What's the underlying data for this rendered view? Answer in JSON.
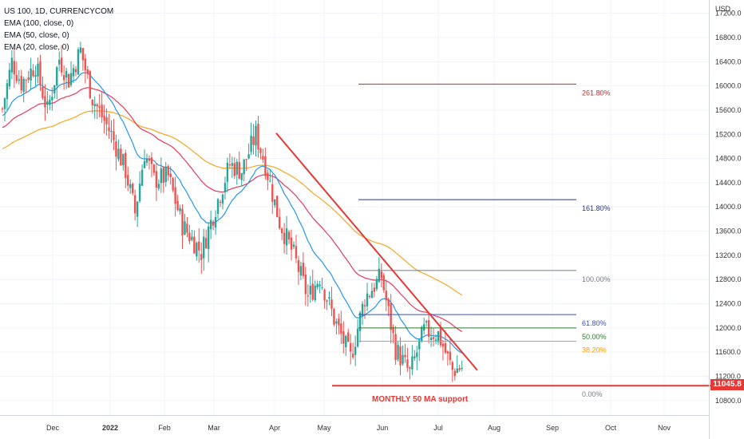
{
  "chart_data": {
    "type": "candlestick",
    "title": "US 100, 1D, CURRENCYCOM",
    "indicators": [
      {
        "name": "EMA (100, close, 0)",
        "color": "#f5a623"
      },
      {
        "name": "EMA (50, close, 0)",
        "color": "#e8395a"
      },
      {
        "name": "EMA (20, close, 0)",
        "color": "#2196f3"
      }
    ],
    "y_unit": "USD",
    "y_ticks": [
      10800,
      11200,
      11600,
      12000,
      12400,
      12800,
      13200,
      13600,
      14000,
      14400,
      14800,
      15200,
      15600,
      16000,
      16400,
      16800,
      17200
    ],
    "y_tick_labels": [
      "10800.0",
      "11200.0",
      "11600.0",
      "12000.0",
      "12400.0",
      "12800.0",
      "13200.0",
      "13600.0",
      "14000.0",
      "14400.0",
      "14800.0",
      "15200.0",
      "15600.0",
      "16000.0",
      "16400.0",
      "16800.0",
      "17200.0"
    ],
    "ylim": [
      10560,
      17420
    ],
    "x_labels": [
      "Dec",
      "2022",
      "Feb",
      "Mar",
      "Apr",
      "May",
      "Jun",
      "Jul",
      "Aug",
      "Sep",
      "Oct",
      "Nov"
    ],
    "candles": [],
    "last_price": "11045.8",
    "fib_levels": [
      {
        "label": "261.80%",
        "value": 16030,
        "color": "#c62828"
      },
      {
        "label": "161.80%",
        "value": 14120,
        "color": "#283593"
      },
      {
        "label": "100.00%",
        "value": 12950,
        "color": "#787b86"
      },
      {
        "label": "61.80%",
        "value": 12220,
        "color": "#3f51b5"
      },
      {
        "label": "50.00%",
        "value": 12000,
        "color": "#2e7d32"
      },
      {
        "label": "38.20%",
        "value": 11780,
        "color": "#ff9800"
      },
      {
        "label": "0.00%",
        "value": 11045,
        "color": "#787b86"
      }
    ],
    "annotation": "MONTHLY 50 MA support",
    "support_level": 11045,
    "trendline": [
      {
        "date_index": 0,
        "value": 15220
      },
      {
        "date_index": 1,
        "value": 11300
      }
    ]
  }
}
